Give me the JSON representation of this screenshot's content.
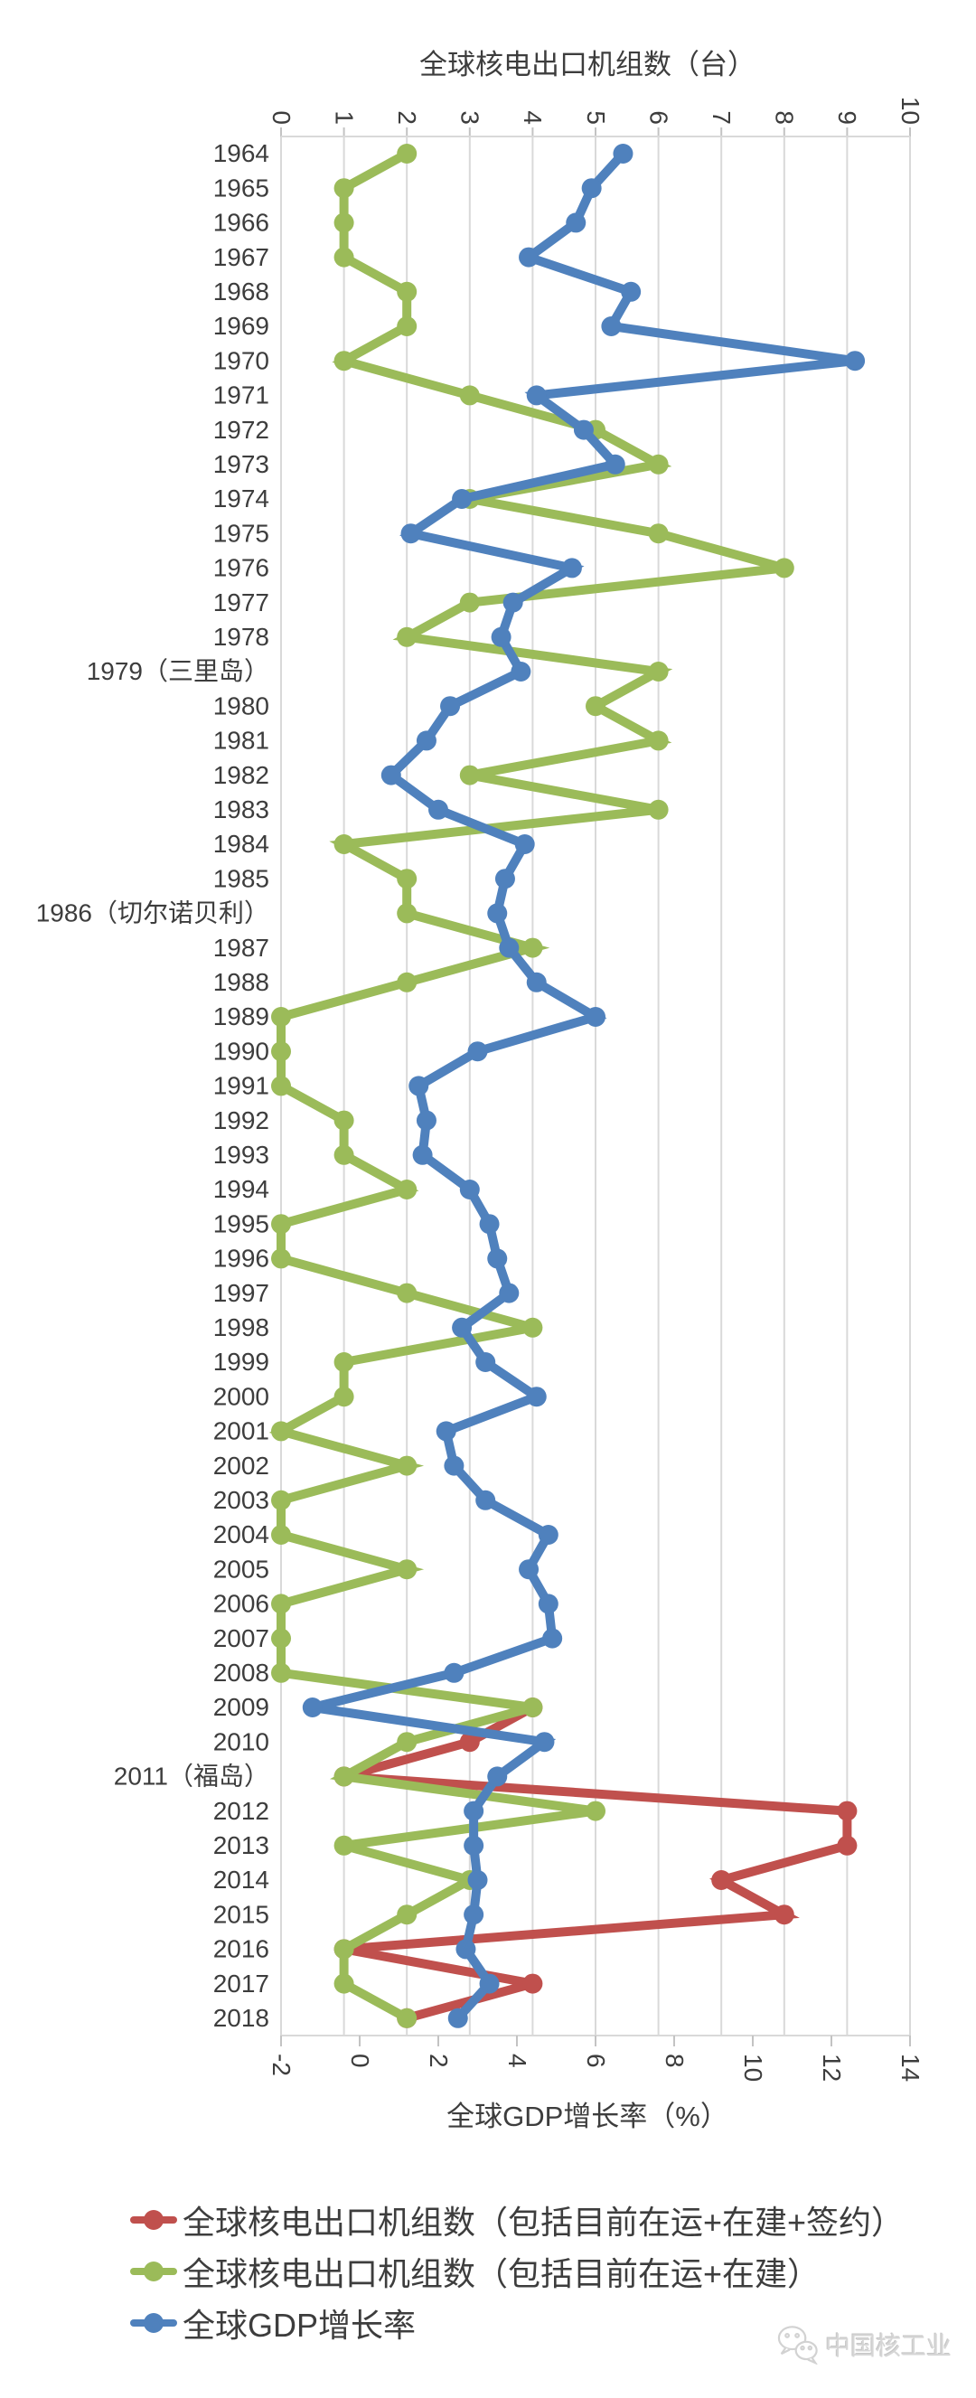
{
  "chart_data": {
    "type": "line",
    "orientation": "years-vertical",
    "title": "全球核电出口机组数（台）",
    "bottom_axis_title": "全球GDP增长率（%）",
    "top_axis": {
      "label": "全球核电出口机组数（台）",
      "min": 0,
      "max": 10,
      "ticks": [
        "0",
        "1",
        "2",
        "3",
        "4",
        "5",
        "6",
        "7",
        "8",
        "9",
        "10"
      ]
    },
    "bottom_axis": {
      "label": "全球GDP增长率（%）",
      "min": -2,
      "max": 14,
      "ticks": [
        "-2",
        "0",
        "2",
        "4",
        "6",
        "8",
        "10",
        "12",
        "14"
      ]
    },
    "grid": true,
    "grid_color": "#D9D9D9",
    "tick_color": "#C3C3C3",
    "text_color": "#3D3D3D",
    "legend_position": "bottom-left",
    "categories": [
      "1964",
      "1965",
      "1966",
      "1967",
      "1968",
      "1969",
      "1970",
      "1971",
      "1972",
      "1973",
      "1974",
      "1975",
      "1976",
      "1977",
      "1978",
      "1979（三里岛）",
      "1980",
      "1981",
      "1982",
      "1983",
      "1984",
      "1985",
      "1986（切尔诺贝利）",
      "1987",
      "1988",
      "1989",
      "1990",
      "1991",
      "1992",
      "1993",
      "1994",
      "1995",
      "1996",
      "1997",
      "1998",
      "1999",
      "2000",
      "2001",
      "2002",
      "2003",
      "2004",
      "2005",
      "2006",
      "2007",
      "2008",
      "2009",
      "2010",
      "2011（福岛）",
      "2012",
      "2013",
      "2014",
      "2015",
      "2016",
      "2017",
      "2018"
    ],
    "series": [
      {
        "name": "全球核电出口机组数（包括目前在运+在建+签约）",
        "color": "#C0504D",
        "axis": "top",
        "start_index": 45,
        "values": [
          4,
          3,
          1,
          9,
          9,
          7,
          8,
          1,
          4,
          2
        ]
      },
      {
        "name": "全球核电出口机组数（包括目前在运+在建）",
        "color": "#9BBB59",
        "axis": "top",
        "start_index": 0,
        "values": [
          2,
          1,
          1,
          1,
          2,
          2,
          1,
          3,
          5,
          6,
          3,
          6,
          8,
          3,
          2,
          6,
          5,
          6,
          3,
          6,
          1,
          2,
          2,
          4,
          2,
          0,
          0,
          0,
          1,
          1,
          2,
          0,
          0,
          2,
          4,
          1,
          1,
          0,
          2,
          0,
          0,
          2,
          0,
          0,
          0,
          4,
          2,
          1,
          5,
          1,
          3,
          2,
          1,
          1,
          2
        ]
      },
      {
        "name": "全球GDP增长率",
        "color": "#4F81BD",
        "axis": "bottom",
        "start_index": 0,
        "values": [
          6.7,
          5.9,
          5.5,
          4.3,
          6.9,
          6.4,
          12.6,
          4.5,
          5.7,
          6.5,
          2.6,
          1.3,
          5.4,
          3.9,
          3.6,
          4.1,
          2.3,
          1.7,
          0.8,
          2.0,
          4.2,
          3.7,
          3.5,
          3.8,
          4.5,
          6.0,
          3.0,
          1.5,
          1.7,
          1.6,
          2.8,
          3.3,
          3.5,
          3.8,
          2.6,
          3.2,
          4.5,
          2.2,
          2.4,
          3.2,
          4.8,
          4.3,
          4.8,
          4.9,
          2.4,
          -1.2,
          4.7,
          3.5,
          2.9,
          2.9,
          3.0,
          2.9,
          2.7,
          3.3,
          2.5
        ]
      }
    ]
  },
  "watermark": {
    "label": "中国核工业",
    "icon": "wechat-logo",
    "color": "#D6D6D6"
  }
}
